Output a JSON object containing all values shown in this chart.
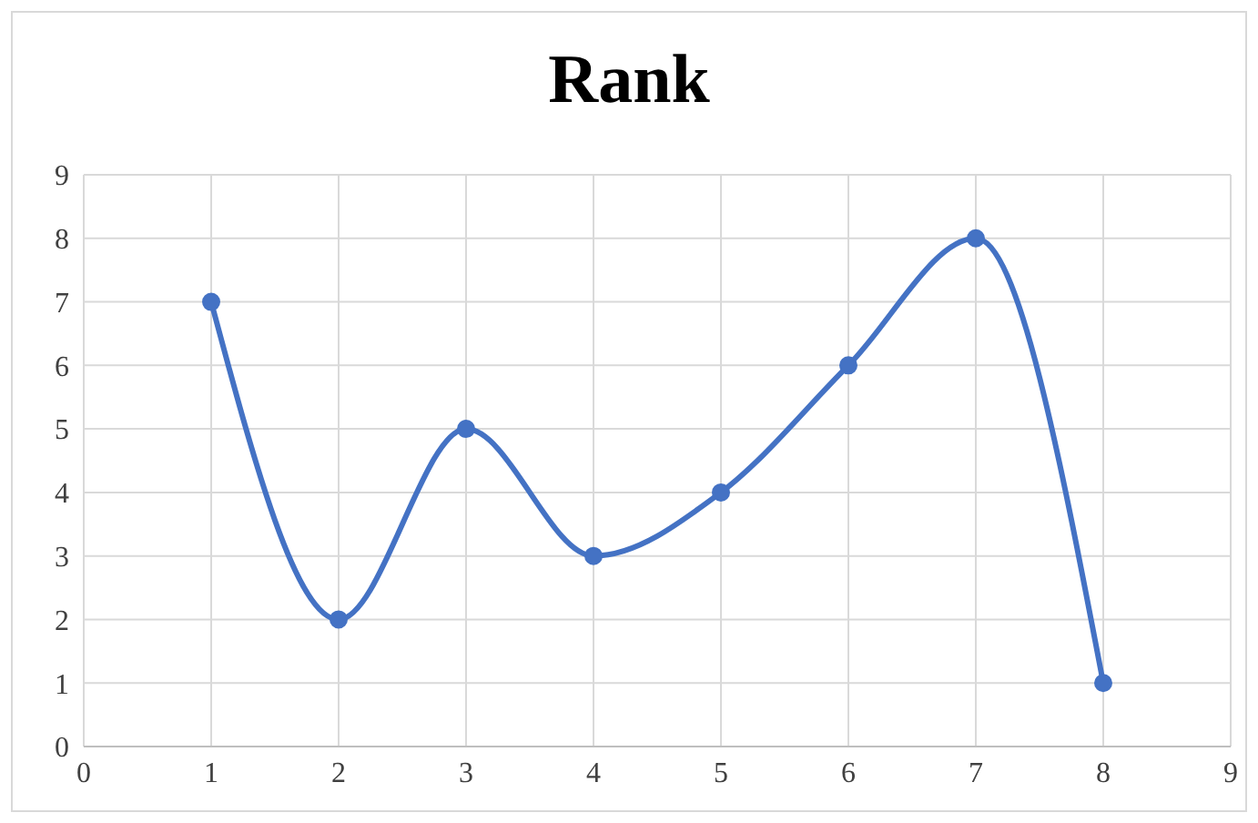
{
  "chart_data": {
    "type": "line",
    "title": "Rank",
    "x": [
      1,
      2,
      3,
      4,
      5,
      6,
      7,
      8
    ],
    "series": [
      {
        "color": "#4472c4",
        "values": [
          7,
          2,
          5,
          3,
          4,
          6,
          8,
          1
        ]
      }
    ],
    "xlim": [
      0,
      9
    ],
    "xticks": [
      0,
      1,
      2,
      3,
      4,
      5,
      6,
      7,
      8,
      9
    ],
    "ylim": [
      0,
      9
    ],
    "yticks": [
      0,
      1,
      2,
      3,
      4,
      5,
      6,
      7,
      8,
      9
    ],
    "grid": true,
    "marker": "circle",
    "line_style": "solid"
  }
}
